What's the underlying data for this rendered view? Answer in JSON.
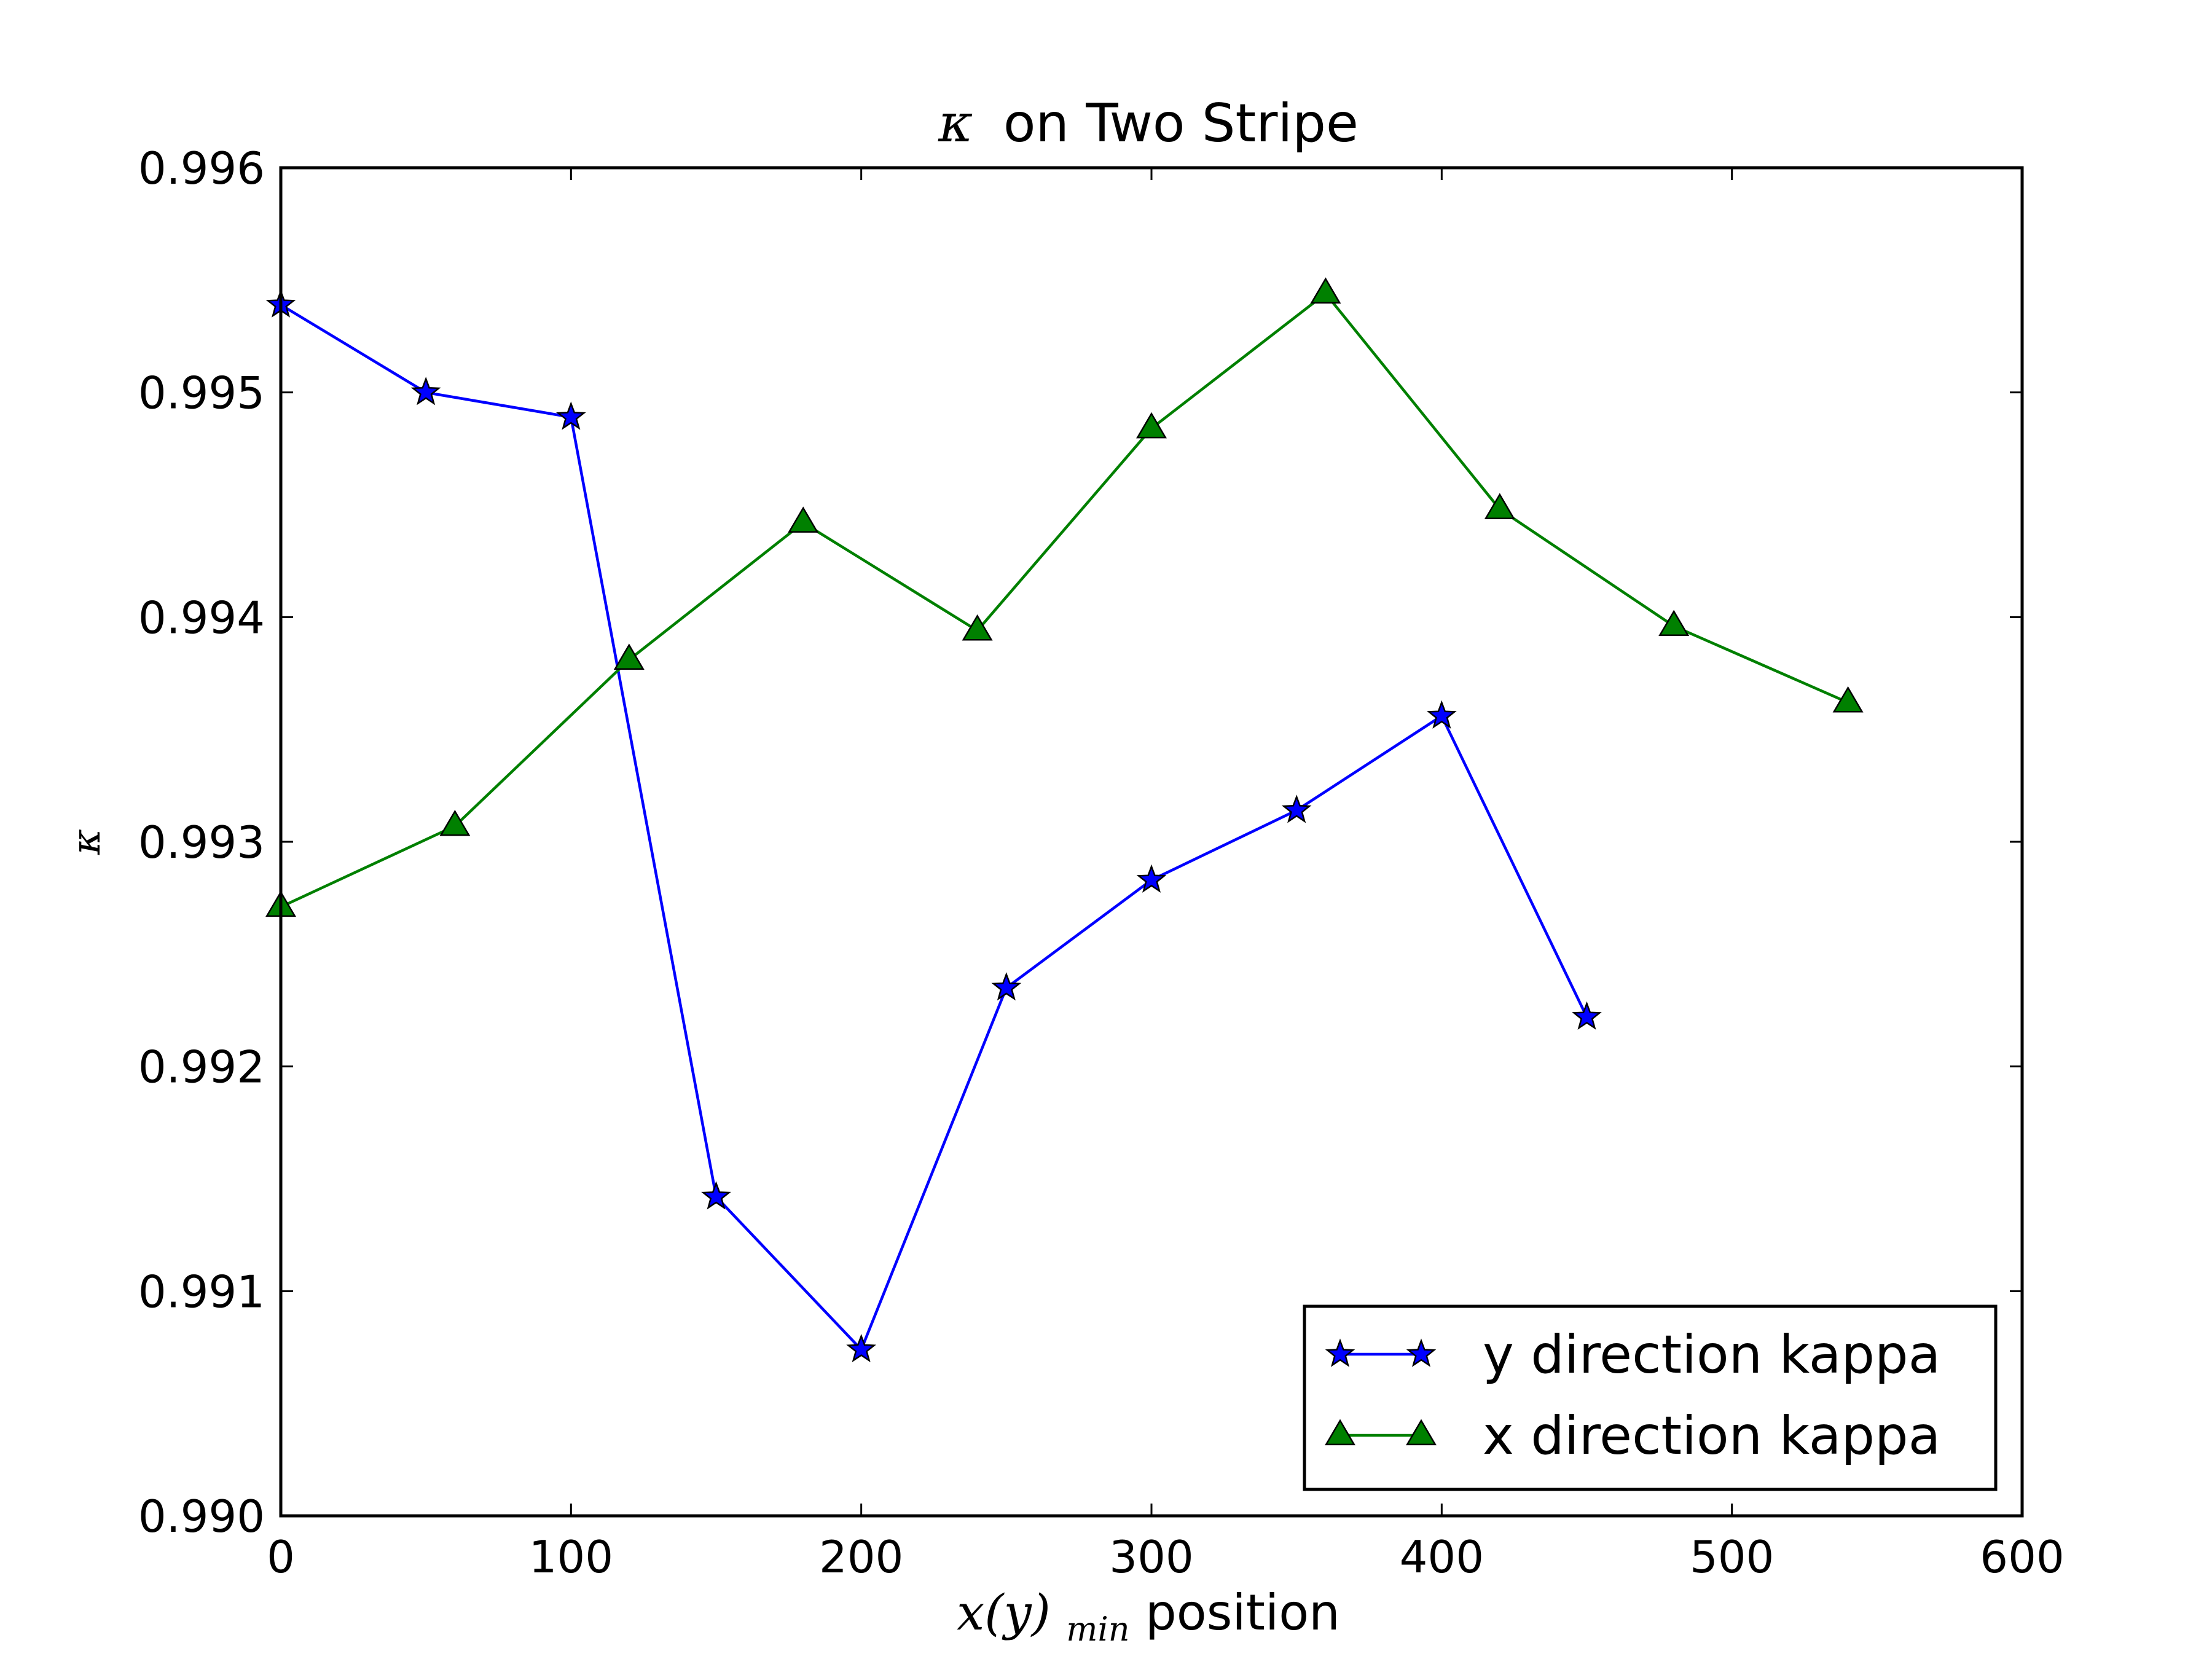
{
  "chart_data": {
    "type": "line",
    "title_symbol": "κ",
    "title_text": "on Two Stripe",
    "xlabel_math_base": "x(y)",
    "xlabel_math_sub": "min",
    "xlabel_text": "position",
    "ylabel": "κ",
    "xlim": [
      0,
      600
    ],
    "ylim": [
      0.99,
      0.996
    ],
    "xticks": [
      0,
      100,
      200,
      300,
      400,
      500,
      600
    ],
    "yticks": [
      0.99,
      0.991,
      0.992,
      0.993,
      0.994,
      0.995,
      0.996
    ],
    "xtick_labels": [
      "0",
      "100",
      "200",
      "300",
      "400",
      "500",
      "600"
    ],
    "ytick_labels": [
      "0.990",
      "0.991",
      "0.992",
      "0.993",
      "0.994",
      "0.995",
      "0.996"
    ],
    "grid": false,
    "legend_position": "lower-right",
    "series": [
      {
        "name": "y direction kappa",
        "color": "#0000ff",
        "marker": "star",
        "x": [
          0,
          50,
          100,
          150,
          200,
          250,
          300,
          350,
          400,
          450
        ],
        "y": [
          0.99539,
          0.995,
          0.99489,
          0.99142,
          0.99074,
          0.99235,
          0.99283,
          0.99314,
          0.99356,
          0.99222
        ]
      },
      {
        "name": "x direction kappa",
        "color": "#008000",
        "marker": "triangle",
        "x": [
          0,
          60,
          120,
          180,
          240,
          300,
          360,
          420,
          480,
          540
        ],
        "y": [
          0.99271,
          0.99307,
          0.99381,
          0.99442,
          0.99394,
          0.99484,
          0.99544,
          0.99448,
          0.99396,
          0.99362
        ]
      }
    ]
  }
}
